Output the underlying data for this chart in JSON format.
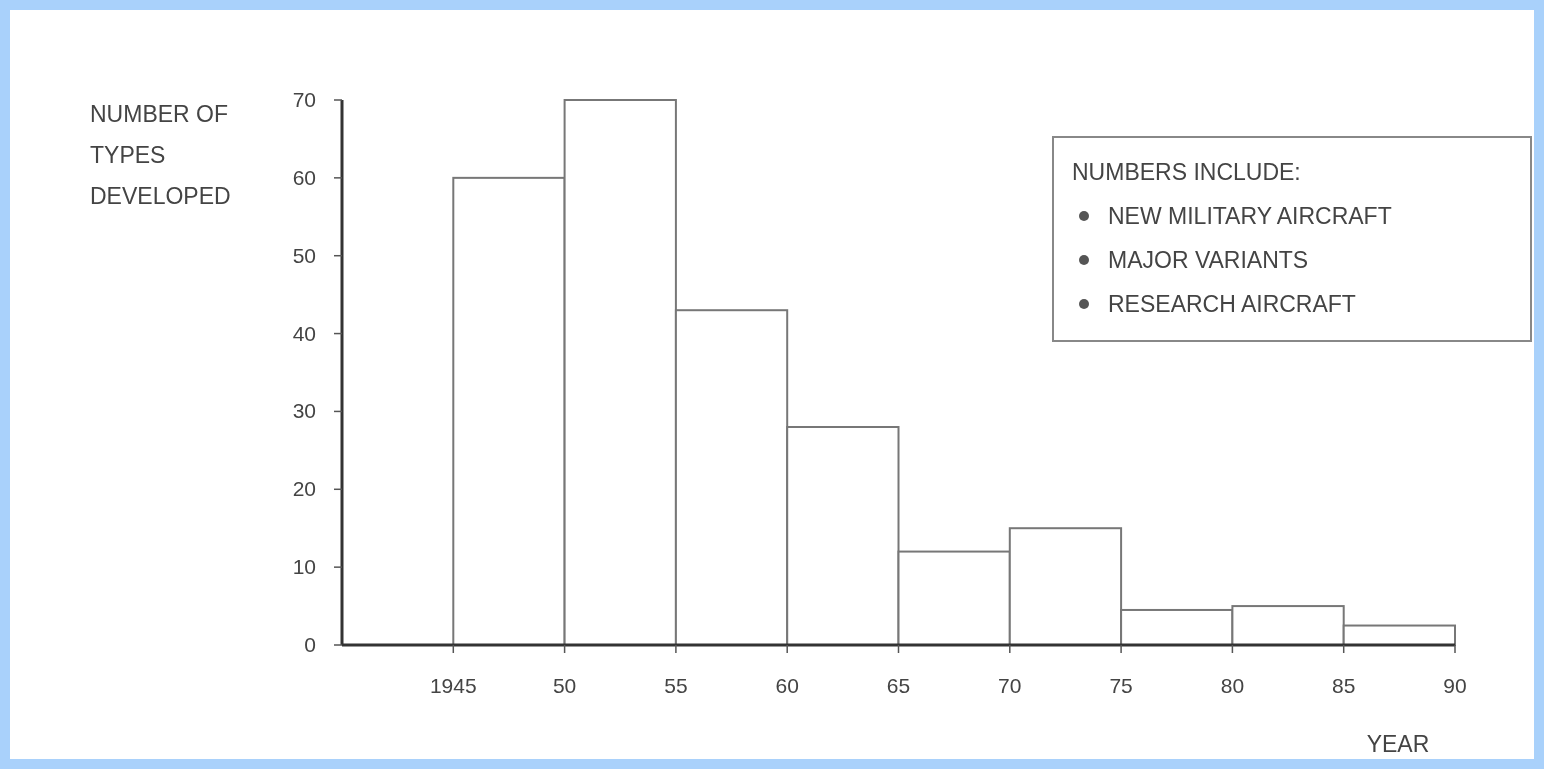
{
  "chart_data": {
    "type": "histogram",
    "ylabel": "NUMBER OF TYPES DEVELOPED",
    "xlabel": "YEAR",
    "bins": [
      1945,
      1950,
      1955,
      1960,
      1965,
      1970,
      1975,
      1980,
      1985,
      1990
    ],
    "values": [
      60,
      70,
      43,
      28,
      12,
      15,
      4.5,
      5,
      2.5
    ],
    "color": "#ffffff",
    "xlim": [
      1940,
      1990
    ],
    "xticks": [
      1945,
      {
        "value": 1950,
        "label": "50"
      },
      {
        "value": 1955,
        "label": "55"
      },
      {
        "value": 1960,
        "label": "60"
      },
      {
        "value": 1965,
        "label": "65"
      },
      {
        "value": 1970,
        "label": "70"
      },
      {
        "value": 1975,
        "label": "75"
      },
      {
        "value": 1980,
        "label": "80"
      },
      {
        "value": 1985,
        "label": "85"
      },
      {
        "value": 1990,
        "label": "90"
      }
    ],
    "ylim": [
      0,
      70
    ],
    "yticks": [
      0,
      10,
      20,
      30,
      40,
      50,
      60,
      70
    ],
    "annotations": [
      "NUMBERS INCLUDE:",
      "NEW MILITARY AIRCRAFT",
      "MAJOR VARIANTS",
      "RESEARCH AIRCRAFT"
    ]
  }
}
